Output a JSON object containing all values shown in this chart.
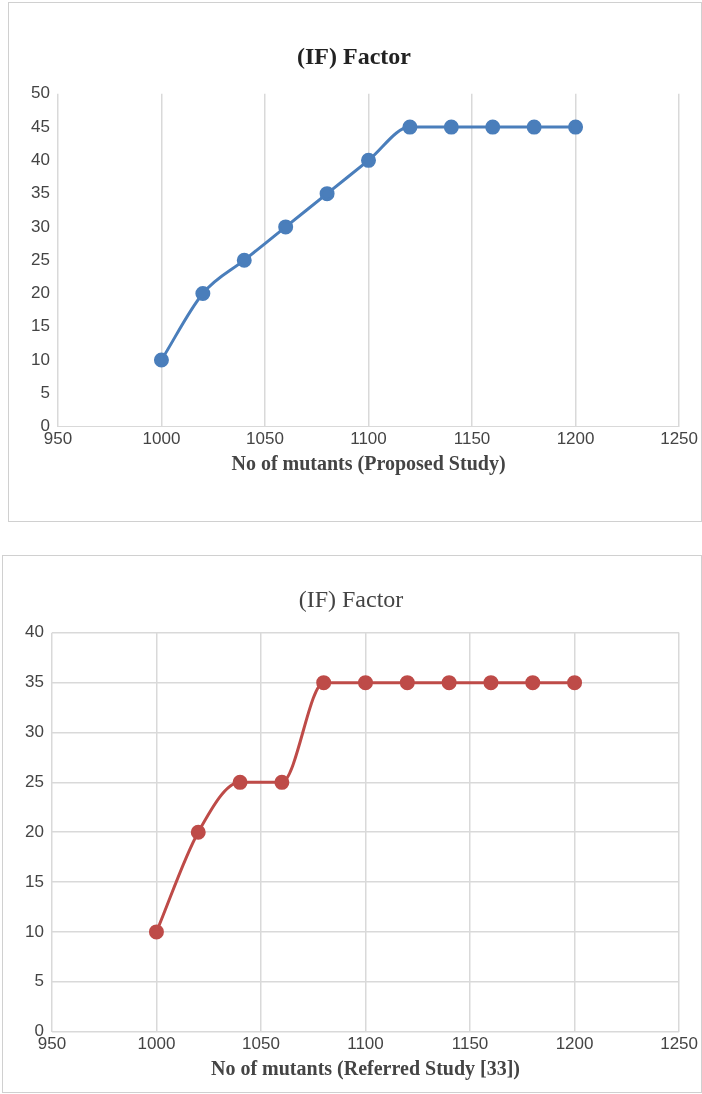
{
  "chart_data": [
    {
      "type": "line",
      "title": "(IF) Factor",
      "xlabel": "No of mutants (Proposed Study)",
      "x": [
        1000,
        1020,
        1040,
        1060,
        1080,
        1100,
        1120,
        1140,
        1160,
        1180,
        1200
      ],
      "series": [
        {
          "color": "#4a7ebb",
          "values": [
            10,
            20,
            25,
            30,
            35,
            40,
            45,
            45,
            45,
            45,
            45
          ]
        }
      ],
      "xlim": [
        950,
        1250
      ],
      "xticks": [
        950,
        1000,
        1050,
        1100,
        1150,
        1200,
        1250
      ],
      "ylim": [
        0,
        50
      ],
      "yticks": [
        0,
        5,
        10,
        15,
        20,
        25,
        30,
        35,
        40,
        45,
        50
      ],
      "grid": "x",
      "legend": false,
      "marker": "circle",
      "line_style": "solid"
    },
    {
      "type": "line",
      "title": "(IF) Factor",
      "xlabel": "No of mutants (Referred Study [33])",
      "x": [
        1000,
        1020,
        1040,
        1060,
        1080,
        1100,
        1120,
        1140,
        1160,
        1180,
        1200
      ],
      "series": [
        {
          "color": "#be4b48",
          "values": [
            10,
            20,
            25,
            25,
            35,
            35,
            35,
            35,
            35,
            35,
            35
          ]
        }
      ],
      "xlim": [
        950,
        1250
      ],
      "xticks": [
        950,
        1000,
        1050,
        1100,
        1150,
        1200,
        1250
      ],
      "ylim": [
        0,
        40
      ],
      "yticks": [
        0,
        5,
        10,
        15,
        20,
        25,
        30,
        35,
        40
      ],
      "grid": true,
      "legend": false,
      "marker": "circle",
      "line_style": "solid"
    }
  ]
}
